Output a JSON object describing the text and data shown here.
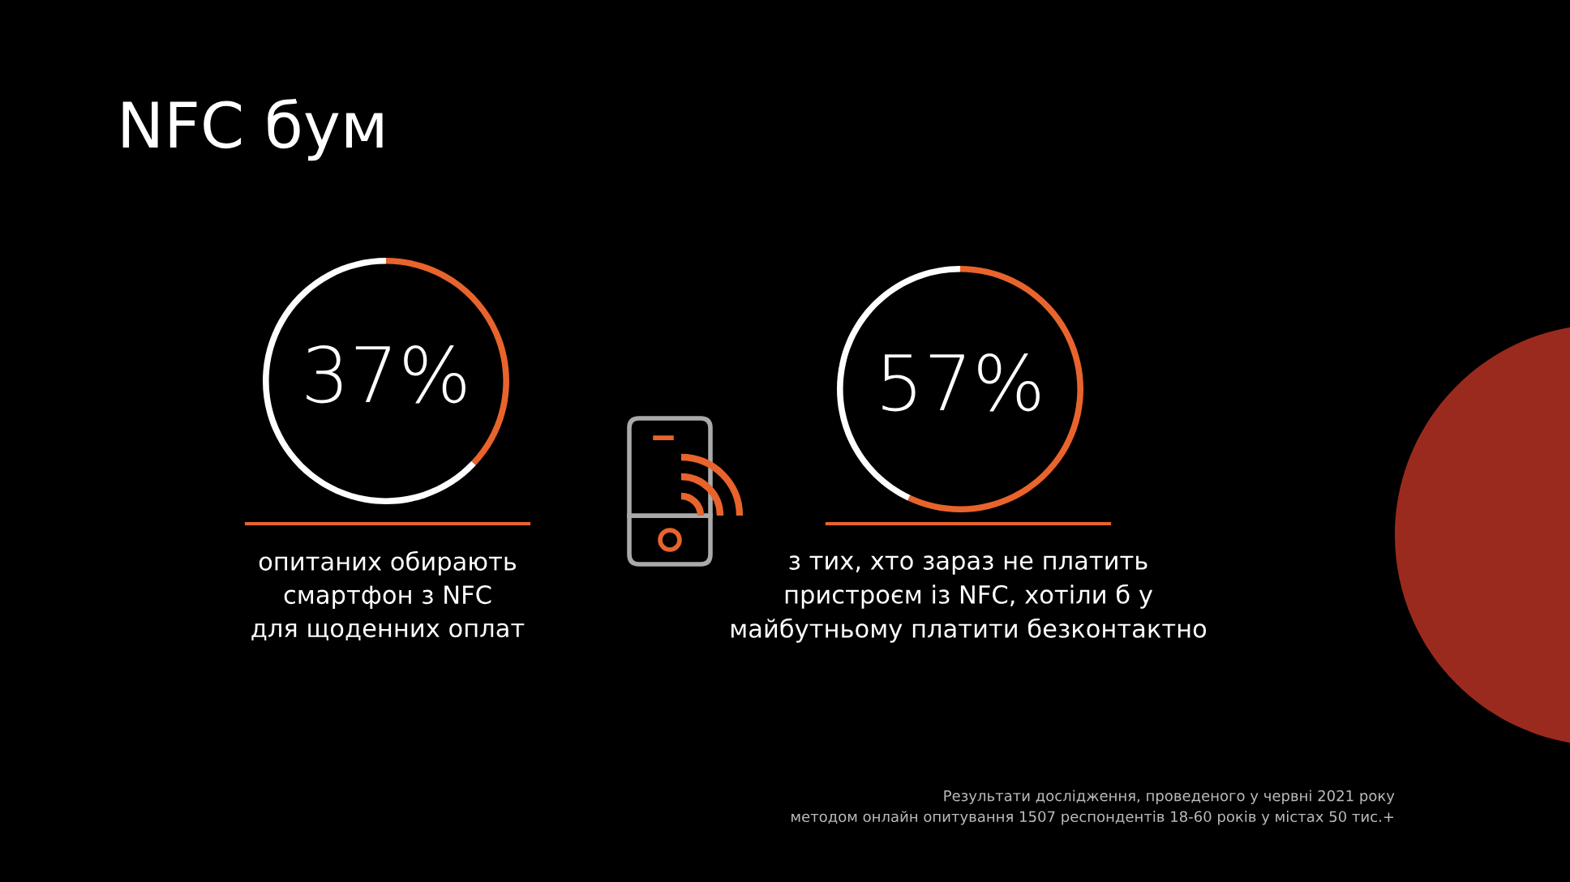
{
  "chart_data": [
    {
      "type": "donut",
      "title": "NFC бум",
      "categories": [
        null,
        null
      ],
      "values": [
        37,
        63
      ],
      "colors": [
        "#e8642c",
        "#ffffff"
      ],
      "value_labels": [
        "37%",
        null
      ],
      "annotations": [
        "опитаних обирають\nсмартфон з NFC\nдля щоденних оплат"
      ]
    },
    {
      "type": "donut",
      "categories": [
        null,
        null
      ],
      "values": [
        57,
        43
      ],
      "colors": [
        "#e8642c",
        "#ffffff"
      ],
      "value_labels": [
        "57%",
        null
      ],
      "annotations": [
        "з тих, хто зараз не платить\nпристроєм із NFC, хотіли б у\nмайбутньому платити безконтактно",
        "Результати дослідження, проведеного у червні 2021 року\nметодом онлайн опитування 1507 респондентів 18-60 років у містах 50 тис.+"
      ]
    }
  ]
}
